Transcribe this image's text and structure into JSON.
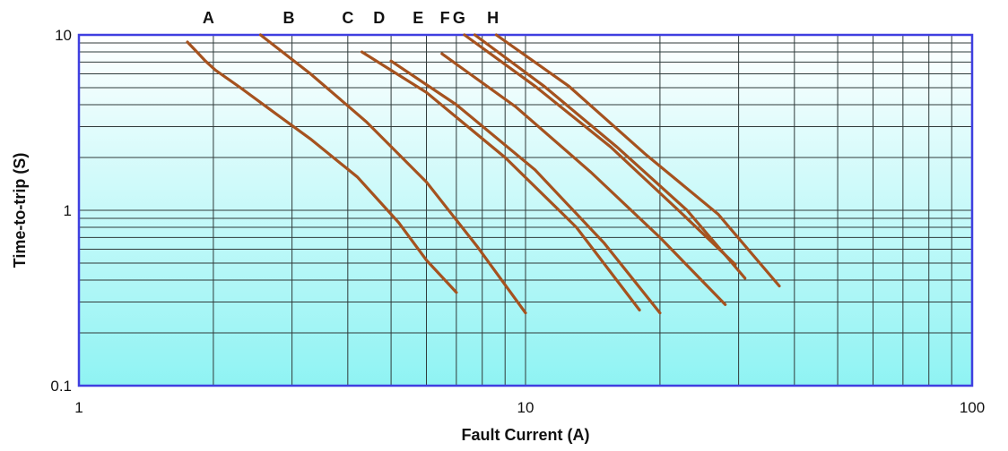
{
  "chart_data": {
    "type": "line",
    "title": "",
    "xlabel": "Fault Current (A)",
    "ylabel": "Time-to-trip (S)",
    "xscale": "log",
    "yscale": "log",
    "xlim": [
      1,
      100
    ],
    "ylim": [
      0.1,
      10
    ],
    "x_ticks": [
      "1",
      "10",
      "100"
    ],
    "y_ticks": [
      "0.1",
      "1",
      "10"
    ],
    "grid": true,
    "background": {
      "top_color": "#ffffff",
      "bottom_color": "#8ff3f3",
      "frame_color": "#3f3fe0"
    },
    "line_color": "#a5521f",
    "series": [
      {
        "name": "A",
        "x": [
          1.75,
          1.82,
          1.92,
          2.02,
          2.3,
          2.7,
          3.3,
          4.2,
          5.2,
          6.0,
          7.0
        ],
        "y": [
          9.1,
          8.2,
          7.1,
          6.3,
          5.0,
          3.7,
          2.55,
          1.55,
          0.85,
          0.52,
          0.34
        ]
      },
      {
        "name": "B",
        "x": [
          2.55,
          3.3,
          4.4,
          6.0,
          7.8,
          10.0
        ],
        "y": [
          10.0,
          6.0,
          3.2,
          1.45,
          0.62,
          0.26
        ]
      },
      {
        "name": "C",
        "x": [
          4.3,
          6.0,
          9.0,
          13.0,
          18.0
        ],
        "y": [
          8.0,
          4.7,
          2.0,
          0.8,
          0.27
        ]
      },
      {
        "name": "D",
        "x": [
          5.0,
          7.0,
          10.5,
          15.0,
          20.0
        ],
        "y": [
          7.1,
          4.0,
          1.7,
          0.65,
          0.26
        ]
      },
      {
        "name": "E",
        "x": [
          6.5,
          9.5,
          14.0,
          20.0,
          28.0
        ],
        "y": [
          7.8,
          3.9,
          1.65,
          0.7,
          0.29
        ]
      },
      {
        "name": "F",
        "x": [
          7.3,
          10.5,
          15.5,
          22.0,
          29.5
        ],
        "y": [
          10.0,
          5.1,
          2.3,
          1.0,
          0.49
        ]
      },
      {
        "name": "G",
        "x": [
          7.7,
          11.0,
          16.0,
          23.0,
          31.0
        ],
        "y": [
          10.0,
          5.1,
          2.3,
          1.0,
          0.41
        ]
      },
      {
        "name": "H",
        "x": [
          8.6,
          12.5,
          18.5,
          27.0,
          37.0
        ],
        "y": [
          10.0,
          5.1,
          2.1,
          0.95,
          0.37
        ]
      }
    ],
    "curve_labels": [
      "A",
      "B",
      "C",
      "D",
      "E",
      "F",
      "G",
      "H"
    ],
    "curve_label_positions_x": [
      1.95,
      2.95,
      4.0,
      4.7,
      5.75,
      6.6,
      7.1,
      8.45
    ]
  }
}
